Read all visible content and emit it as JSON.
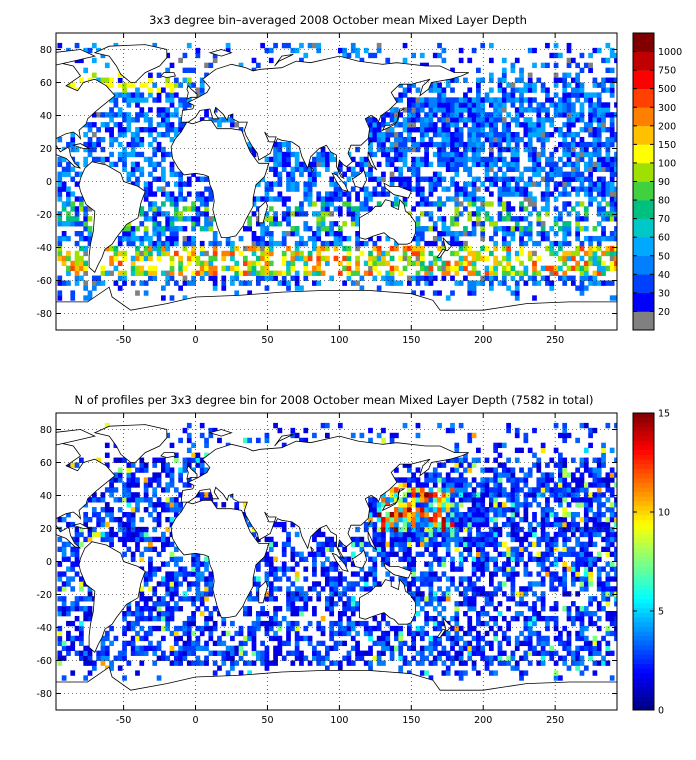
{
  "chart_data": [
    {
      "type": "heatmap",
      "title": "3x3 degree bin–averaged 2008 October mean Mixed Layer Depth",
      "xlabel": "",
      "ylabel": "",
      "xlim": [
        -97,
        293
      ],
      "ylim": [
        -90,
        90
      ],
      "x_ticks": [
        "-50",
        "0",
        "50",
        "100",
        "150",
        "200",
        "250"
      ],
      "x_tick_values": [
        -50,
        0,
        50,
        100,
        150,
        200,
        250
      ],
      "y_ticks": [
        "80",
        "60",
        "40",
        "20",
        "0",
        "-20",
        "-40",
        "-60",
        "-80"
      ],
      "y_tick_values": [
        80,
        60,
        40,
        20,
        0,
        -20,
        -40,
        -60,
        -80
      ],
      "grid": true,
      "colorbar": {
        "scale": "categorical (nonlinear)",
        "labels": [
          "20",
          "30",
          "40",
          "50",
          "60",
          "70",
          "80",
          "90",
          "100",
          "150",
          "200",
          "300",
          "500",
          "750",
          "1000"
        ],
        "colors": [
          "#808080",
          "#0000ff",
          "#0040ff",
          "#0080ff",
          "#00a8ff",
          "#00c8c8",
          "#00c080",
          "#40d040",
          "#a0e000",
          "#ffff00",
          "#ffc000",
          "#ff8000",
          "#ff4000",
          "#ff0000",
          "#c00000",
          "#800000"
        ]
      },
      "field_description_values": {
        "dominant_range_open_ocean": "30-60",
        "southern_ocean_band_lat": [
          -55,
          -40
        ],
        "southern_ocean_band_range": "100-300",
        "north_atlantic_high_lat": [
          55,
          65
        ],
        "north_atlantic_high_range": "90-150"
      }
    },
    {
      "type": "heatmap",
      "title": "N of profiles per 3x3 degree bin for 2008 October mean Mixed Layer Depth  (7582 in total)",
      "total_profiles": 7582,
      "xlabel": "",
      "ylabel": "",
      "xlim": [
        -97,
        293
      ],
      "ylim": [
        -90,
        90
      ],
      "x_ticks": [
        "-50",
        "0",
        "50",
        "100",
        "150",
        "200",
        "250"
      ],
      "x_tick_values": [
        -50,
        0,
        50,
        100,
        150,
        200,
        250
      ],
      "y_ticks": [
        "80",
        "60",
        "40",
        "20",
        "0",
        "-20",
        "-40",
        "-60",
        "-80"
      ],
      "y_tick_values": [
        80,
        60,
        40,
        20,
        0,
        -20,
        -40,
        -60,
        -80
      ],
      "grid": true,
      "colorbar": {
        "scale": "linear",
        "min": 0,
        "max": 15,
        "labels": [
          "0",
          "5",
          "10",
          "15"
        ],
        "label_values": [
          0,
          5,
          10,
          15
        ],
        "colormap": "jet"
      },
      "field_description_values": {
        "dominant_count": "1-3",
        "high_count_region": "northwest Pacific (20-45N, 125-180E)",
        "high_count_range": "8-15"
      }
    }
  ],
  "colors": {
    "land_coast": "#000000",
    "missing_bin": "#808080",
    "background": "#ffffff"
  }
}
